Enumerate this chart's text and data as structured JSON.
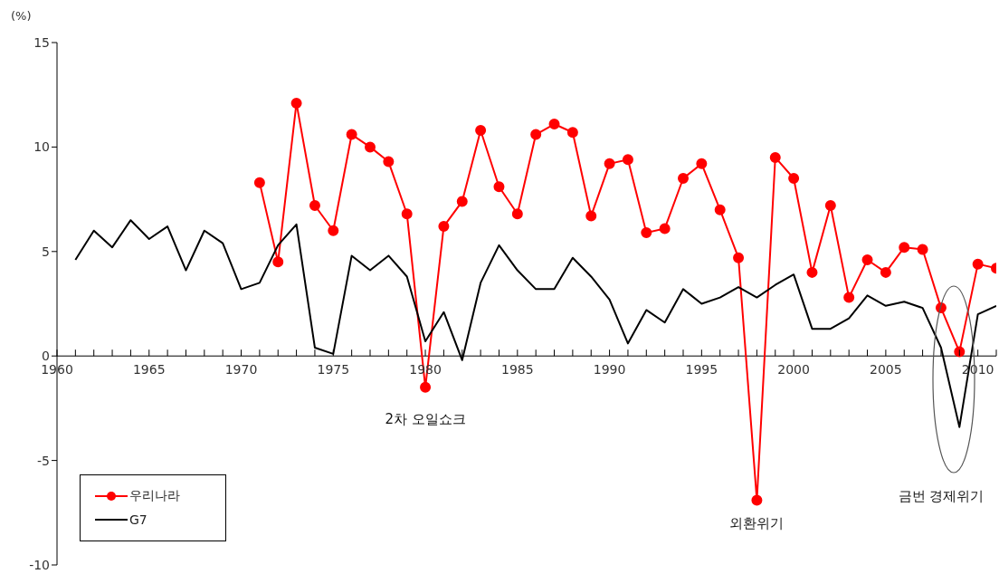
{
  "chart_data": {
    "type": "line",
    "ylabel": "(%)",
    "x": [
      1961,
      1962,
      1963,
      1964,
      1965,
      1966,
      1967,
      1968,
      1969,
      1970,
      1971,
      1972,
      1973,
      1974,
      1975,
      1976,
      1977,
      1978,
      1979,
      1980,
      1981,
      1982,
      1983,
      1984,
      1985,
      1986,
      1987,
      1988,
      1989,
      1990,
      1991,
      1992,
      1993,
      1994,
      1995,
      1996,
      1997,
      1998,
      1999,
      2000,
      2001,
      2002,
      2003,
      2004,
      2005,
      2006,
      2007,
      2008,
      2009,
      2010,
      2011
    ],
    "series": [
      {
        "name": "우리나라",
        "color": "#ff0000",
        "marker": "circle",
        "values": [
          null,
          null,
          null,
          null,
          null,
          null,
          null,
          null,
          null,
          null,
          8.3,
          4.5,
          12.1,
          7.2,
          6.0,
          10.6,
          10.0,
          9.3,
          6.8,
          -1.5,
          6.2,
          7.4,
          10.8,
          8.1,
          6.8,
          10.6,
          11.1,
          10.7,
          6.7,
          9.2,
          9.4,
          5.9,
          6.1,
          8.5,
          9.2,
          7.0,
          4.7,
          -6.9,
          9.5,
          8.5,
          4.0,
          7.2,
          2.8,
          4.6,
          4.0,
          5.2,
          5.1,
          2.3,
          0.2,
          4.4,
          4.2
        ]
      },
      {
        "name": "G7",
        "color": "#000000",
        "marker": "none",
        "values": [
          4.6,
          6.0,
          5.2,
          6.5,
          5.6,
          6.2,
          4.1,
          6.0,
          5.4,
          3.2,
          3.5,
          5.3,
          6.3,
          0.4,
          0.1,
          4.8,
          4.1,
          4.8,
          3.8,
          0.7,
          2.1,
          -0.2,
          3.5,
          5.3,
          4.1,
          3.2,
          3.2,
          4.7,
          3.8,
          2.7,
          0.6,
          2.2,
          1.6,
          3.2,
          2.5,
          2.8,
          3.3,
          2.8,
          3.4,
          3.9,
          1.3,
          1.3,
          1.8,
          2.9,
          2.4,
          2.6,
          2.3,
          0.4,
          -3.4,
          2.0,
          2.4
        ]
      }
    ],
    "xlim": [
      1960,
      2011
    ],
    "xticks": [
      1960,
      {
        "value": 1961,
        "label": null
      },
      {
        "value": 1962,
        "label": null
      },
      {
        "value": 1963,
        "label": null
      },
      {
        "value": 1964,
        "label": null
      },
      1965,
      {
        "value": 1966,
        "label": null
      },
      {
        "value": 1967,
        "label": null
      },
      {
        "value": 1968,
        "label": null
      },
      {
        "value": 1969,
        "label": null
      },
      1970,
      {
        "value": 1971,
        "label": null
      },
      {
        "value": 1972,
        "label": null
      },
      {
        "value": 1973,
        "label": null
      },
      {
        "value": 1974,
        "label": null
      },
      1975,
      {
        "value": 1976,
        "label": null
      },
      {
        "value": 1977,
        "label": null
      },
      {
        "value": 1978,
        "label": null
      },
      {
        "value": 1979,
        "label": null
      },
      1980,
      {
        "value": 1981,
        "label": null
      },
      {
        "value": 1982,
        "label": null
      },
      {
        "value": 1983,
        "label": null
      },
      {
        "value": 1984,
        "label": null
      },
      1985,
      {
        "value": 1986,
        "label": null
      },
      {
        "value": 1987,
        "label": null
      },
      {
        "value": 1988,
        "label": null
      },
      {
        "value": 1989,
        "label": null
      },
      1990,
      {
        "value": 1991,
        "label": null
      },
      {
        "value": 1992,
        "label": null
      },
      {
        "value": 1993,
        "label": null
      },
      {
        "value": 1994,
        "label": null
      },
      1995,
      {
        "value": 1996,
        "label": null
      },
      {
        "value": 1997,
        "label": null
      },
      {
        "value": 1998,
        "label": null
      },
      {
        "value": 1999,
        "label": null
      },
      2000,
      {
        "value": 2001,
        "label": null
      },
      {
        "value": 2002,
        "label": null
      },
      {
        "value": 2003,
        "label": null
      },
      {
        "value": 2004,
        "label": null
      },
      2005,
      {
        "value": 2006,
        "label": null
      },
      {
        "value": 2007,
        "label": null
      },
      {
        "value": 2008,
        "label": null
      },
      {
        "value": 2009,
        "label": null
      },
      2010,
      {
        "value": 2011,
        "label": null
      }
    ],
    "ylim": [
      -10,
      15
    ],
    "yticks": [
      -10,
      -5,
      0,
      5,
      10,
      15
    ],
    "grid": false,
    "legend": "bottom left",
    "line_style": "solid",
    "annotations": [
      {
        "text": "2차 오일쇼크",
        "x": 1980,
        "y": -1.5
      },
      {
        "text": "외환위기",
        "x": 1998,
        "y": -6.9
      },
      "금번 경제위기"
    ]
  }
}
